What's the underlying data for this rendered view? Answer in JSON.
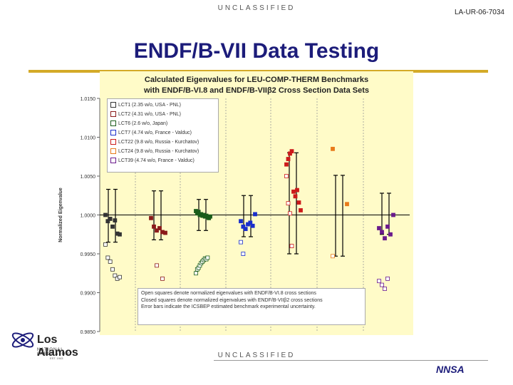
{
  "header": {
    "classification": "UNCLASSIFIED",
    "report_id": "LA-UR-06-7034",
    "title": "ENDF/B-VII Data Testing"
  },
  "footer": {
    "classification": "UNCLASSIFIED"
  },
  "logo": {
    "name": "Los Alamos",
    "sub": "NATIONAL LABORATORY",
    "est": "EST. 1943",
    "sponsor": "NNSA"
  },
  "colors": {
    "title": "#1c1c7a",
    "rule": "#d4aa28",
    "plot_bg": "#fffbc8"
  },
  "chart_data": {
    "type": "scatter",
    "title": "Calculated Eigenvalues for LEU-COMP-THERM Benchmarks with ENDF/B-VI.8 and ENDF/B-VIIβ2 Cross Section Data Sets",
    "ylabel": "Normalized Eigenvalue",
    "xlabel": "",
    "ylim": [
      0.985,
      1.015
    ],
    "y_ticks": [
      "1.0150",
      "1.0100",
      "1.0050",
      "1.0000",
      "0.9950",
      "0.9900",
      "0.9850"
    ],
    "grid": false,
    "legend_position": "top-left",
    "annotation": [
      "Open squares denote normalized eigenvalues with ENDF/B-VI.8 cross sections",
      "Closed squares denote normalized eigenvalues with ENDF/B-VIIβ2 cross sections",
      "Error bars indicate the ICSBEP estimated benchmark experimental uncertainty."
    ],
    "series": [
      {
        "name": "LCT1 (2.35 w/o, USA - PNL)",
        "color": "#333333",
        "err_low": 0.9965,
        "err_high": 1.0033,
        "closed": [
          [
            1,
            1.0
          ],
          [
            2,
            0.9992
          ],
          [
            3,
            0.9995
          ],
          [
            4,
            0.9985
          ],
          [
            5,
            0.9993
          ],
          [
            6,
            0.9976
          ],
          [
            7,
            0.9975
          ]
        ],
        "open": [
          [
            1,
            0.9962
          ],
          [
            2,
            0.9945
          ],
          [
            3,
            0.994
          ],
          [
            4,
            0.993
          ],
          [
            5,
            0.9922
          ],
          [
            6,
            0.9918
          ],
          [
            7,
            0.992
          ]
        ]
      },
      {
        "name": "LCT2 (4.31 w/o, USA - PNL)",
        "color": "#8b1a1a",
        "err_low": 0.9968,
        "err_high": 1.0031,
        "closed": [
          [
            1,
            0.9996
          ],
          [
            2,
            0.9985
          ],
          [
            3,
            0.998
          ],
          [
            4,
            0.9983
          ],
          [
            5,
            0.9978
          ],
          [
            6,
            0.9977
          ]
        ],
        "open": [
          [
            3,
            0.9935
          ],
          [
            5,
            0.9918
          ]
        ]
      },
      {
        "name": "LCT6 (2.6 w/o, Japan)",
        "color": "#1a5c1a",
        "err_low": 0.998,
        "err_high": 1.002,
        "closed": [
          [
            1,
            1.0005
          ],
          [
            2,
            1.0002
          ],
          [
            3,
            1.0004
          ],
          [
            4,
            1.0
          ],
          [
            5,
            1.0001
          ],
          [
            6,
            0.9999
          ],
          [
            7,
            1.0
          ],
          [
            8,
            0.9998
          ],
          [
            9,
            0.9999
          ],
          [
            10,
            0.9997
          ],
          [
            11,
            0.9996
          ],
          [
            12,
            0.9998
          ]
        ],
        "open": [
          [
            1,
            0.9925
          ],
          [
            2,
            0.993
          ],
          [
            3,
            0.9932
          ],
          [
            4,
            0.9935
          ],
          [
            5,
            0.9938
          ],
          [
            6,
            0.994
          ],
          [
            7,
            0.9942
          ],
          [
            8,
            0.9944
          ],
          [
            9,
            0.9943
          ],
          [
            10,
            0.9945
          ]
        ]
      },
      {
        "name": "LCT7 (4.74 w/o, France - Valduc)",
        "color": "#1a2ecc",
        "err_low": 0.9972,
        "err_high": 1.0025,
        "closed": [
          [
            1,
            0.9992
          ],
          [
            2,
            0.9985
          ],
          [
            3,
            0.9982
          ],
          [
            4,
            0.9988
          ],
          [
            5,
            0.999
          ],
          [
            6,
            0.9986
          ],
          [
            7,
            1.0001
          ]
        ],
        "open": [
          [
            1,
            0.9965
          ],
          [
            2,
            0.995
          ],
          [
            3,
            0.9902
          ]
        ]
      },
      {
        "name": "LCT22 (9.8 w/o, Russia - Kurchatov)",
        "color": "#cc1a1a",
        "err_low": 0.995,
        "err_high": 1.008,
        "closed": [
          [
            1,
            1.0065
          ],
          [
            2,
            1.0072
          ],
          [
            3,
            1.0079
          ],
          [
            4,
            1.0082
          ],
          [
            5,
            1.003
          ],
          [
            6,
            1.0024
          ],
          [
            7,
            1.0032
          ],
          [
            8,
            1.0016
          ],
          [
            9,
            1.0006
          ]
        ],
        "open": [
          [
            1,
            1.005
          ],
          [
            2,
            1.0015
          ],
          [
            3,
            1.0002
          ],
          [
            4,
            0.996
          ]
        ]
      },
      {
        "name": "LCT24 (9.8 w/o, Russia - Kurchatov)",
        "color": "#e87a1a",
        "err_low": 0.9947,
        "err_high": 1.0051,
        "closed": [
          [
            1,
            1.0085
          ],
          [
            2,
            1.0014
          ]
        ],
        "open": [
          [
            1,
            0.9947
          ]
        ]
      },
      {
        "name": "LCT39 (4.74 w/o, France - Valduc)",
        "color": "#6a1a8c",
        "err_low": 0.9975,
        "err_high": 1.0028,
        "closed": [
          [
            1,
            0.9983
          ],
          [
            2,
            0.9978
          ],
          [
            3,
            0.997
          ],
          [
            4,
            0.9985
          ],
          [
            5,
            0.9975
          ],
          [
            6,
            1.0
          ]
        ],
        "open": [
          [
            1,
            0.9915
          ],
          [
            2,
            0.991
          ],
          [
            3,
            0.9905
          ],
          [
            4,
            0.9918
          ]
        ]
      }
    ]
  }
}
